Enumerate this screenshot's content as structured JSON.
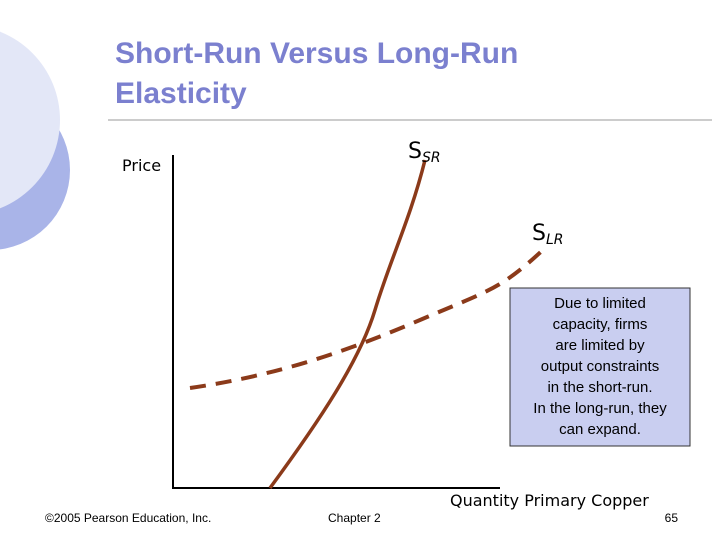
{
  "title": [
    "Short-Run Versus Long-Run",
    "Elasticity"
  ],
  "axes": {
    "y_label": "Price",
    "x_label": "Quantity Primary Copper"
  },
  "curves": {
    "short_run": {
      "label": "S",
      "subscript": "SR"
    },
    "long_run": {
      "label": "S",
      "subscript": "LR"
    }
  },
  "note": [
    "Due to limited",
    "capacity, firms",
    "are limited by",
    "output constraints",
    "in the short-run.",
    "In the long-run, they",
    "can expand."
  ],
  "footer": {
    "copyright": "©2005 Pearson Education, Inc.",
    "chapter": "Chapter 2",
    "page": "65"
  }
}
